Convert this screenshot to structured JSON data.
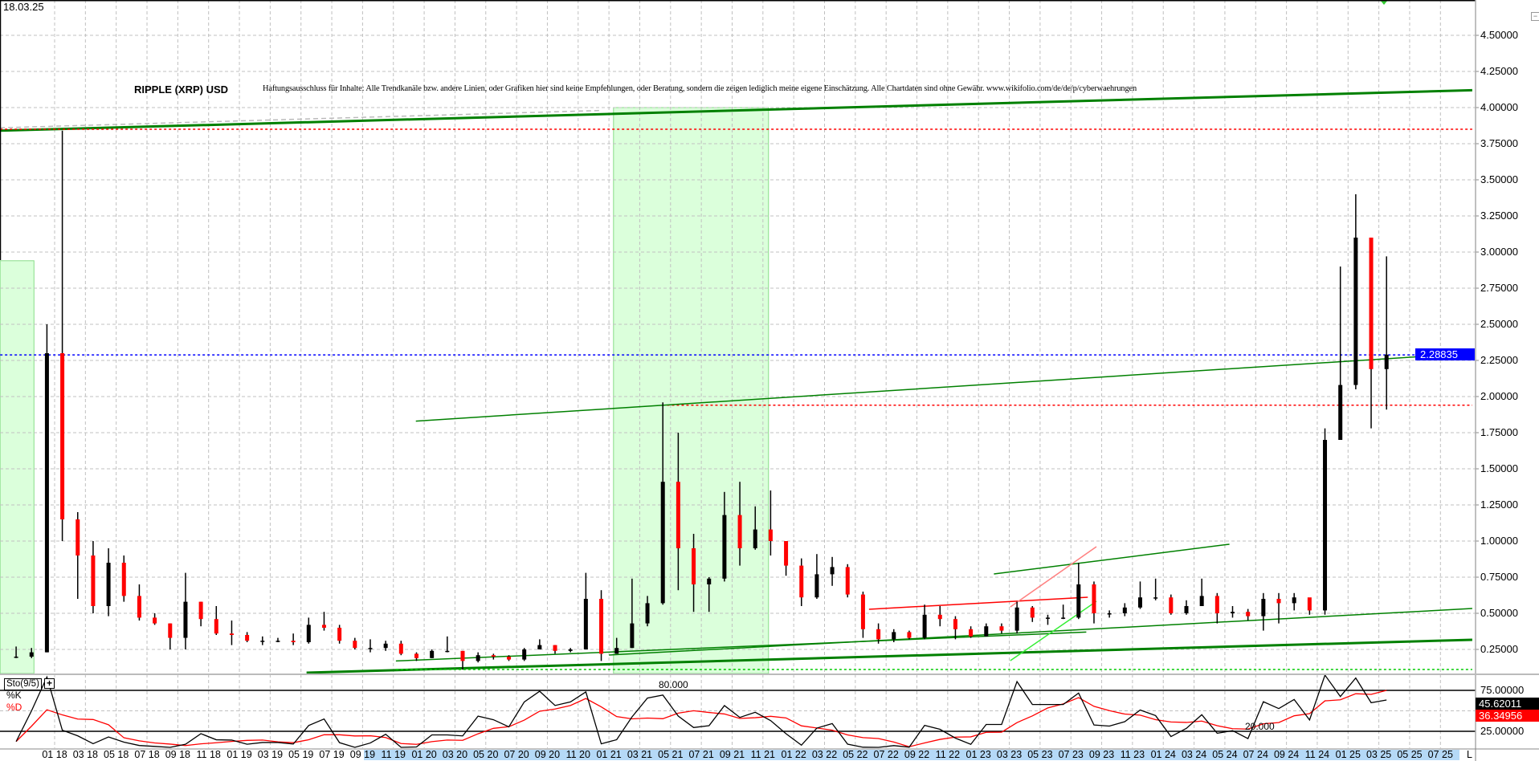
{
  "header": {
    "date": "18.03.25",
    "title": "RIPPLE (XRP) USD",
    "disclaimer": "Haftungsausschluss für Inhalte: Alle Trendkanäle bzw. andere Linien, oder Grafiken hier sind keine Empfehlungen, oder Beratung, sondern die zeigen lediglich meine eigene Einschätzung. Alle Chartdaten sind ohne Gewähr.  www.wikifolio.com/de/de/p/cyberwaehrungen"
  },
  "colors": {
    "up": "#000000",
    "down": "#ff0000",
    "trend_green": "#008000",
    "bright_green": "#33ee33",
    "pink": "#ff8080",
    "highlight_zone": "#ccffcc",
    "price_marker": "#0000ff",
    "axis_band": "#b5d9f7"
  },
  "chart_data": [
    {
      "type": "candlestick",
      "interval": "approx. monthly (high, low, close)",
      "y_axis": {
        "ticks": [
          "4.50000",
          "4.25000",
          "4.00000",
          "3.75000",
          "3.50000",
          "3.25000",
          "3.00000",
          "2.75000",
          "2.50000",
          "2.25000",
          "2.00000",
          "1.75000",
          "1.50000",
          "1.25000",
          "1.00000",
          "0.75000",
          "0.50000",
          "0.25000"
        ],
        "ylim": [
          0.08,
          4.74
        ],
        "position": "right",
        "grid": true
      },
      "x_axis": {
        "ticks": [
          "01 18",
          "03 18",
          "05 18",
          "07 18",
          "09 18",
          "11 18",
          "01 19",
          "03 19",
          "05 19",
          "07 19",
          "09 19",
          "11 19",
          "01 20",
          "03 20",
          "05 20",
          "07 20",
          "09 20",
          "11 20",
          "01 21",
          "03 21",
          "05 21",
          "07 21",
          "09 21",
          "11 21",
          "01 22",
          "03 22",
          "05 22",
          "07 22",
          "09 22",
          "11 22",
          "01 23",
          "03 23",
          "05 23",
          "07 23",
          "09 23",
          "11 23",
          "01 24",
          "03 24",
          "05 24",
          "07 24",
          "09 24",
          "11 24",
          "01 25",
          "03 25",
          "05 25",
          "07 25"
        ],
        "end_label": "L",
        "grid": true
      },
      "last_price": "2.28835",
      "bars": [
        [
          "2017-10",
          0.27,
          0.19,
          0.2
        ],
        [
          "2017-11",
          0.26,
          0.19,
          0.23
        ],
        [
          "2017-12",
          2.5,
          0.23,
          2.3
        ],
        [
          "2018-01",
          3.84,
          1.0,
          1.15
        ],
        [
          "2018-02",
          1.2,
          0.6,
          0.9
        ],
        [
          "2018-03",
          1.0,
          0.5,
          0.55
        ],
        [
          "2018-04",
          0.95,
          0.48,
          0.85
        ],
        [
          "2018-05",
          0.9,
          0.58,
          0.62
        ],
        [
          "2018-06",
          0.7,
          0.45,
          0.47
        ],
        [
          "2018-07",
          0.5,
          0.42,
          0.43
        ],
        [
          "2018-08",
          0.43,
          0.25,
          0.33
        ],
        [
          "2018-09",
          0.78,
          0.25,
          0.58
        ],
        [
          "2018-10",
          0.58,
          0.41,
          0.46
        ],
        [
          "2018-11",
          0.55,
          0.35,
          0.36
        ],
        [
          "2018-12",
          0.45,
          0.28,
          0.35
        ],
        [
          "2019-01",
          0.37,
          0.3,
          0.31
        ],
        [
          "2019-02",
          0.34,
          0.28,
          0.31
        ],
        [
          "2019-03",
          0.33,
          0.3,
          0.31
        ],
        [
          "2019-04",
          0.36,
          0.28,
          0.3
        ],
        [
          "2019-05",
          0.47,
          0.29,
          0.42
        ],
        [
          "2019-06",
          0.51,
          0.38,
          0.4
        ],
        [
          "2019-07",
          0.42,
          0.29,
          0.31
        ],
        [
          "2019-08",
          0.33,
          0.25,
          0.26
        ],
        [
          "2019-09",
          0.32,
          0.23,
          0.26
        ],
        [
          "2019-10",
          0.31,
          0.24,
          0.29
        ],
        [
          "2019-11",
          0.31,
          0.21,
          0.22
        ],
        [
          "2019-12",
          0.23,
          0.17,
          0.19
        ],
        [
          "2020-01",
          0.25,
          0.19,
          0.24
        ],
        [
          "2020-02",
          0.34,
          0.23,
          0.24
        ],
        [
          "2020-03",
          0.24,
          0.11,
          0.17
        ],
        [
          "2020-04",
          0.23,
          0.16,
          0.21
        ],
        [
          "2020-05",
          0.22,
          0.18,
          0.2
        ],
        [
          "2020-06",
          0.21,
          0.17,
          0.18
        ],
        [
          "2020-07",
          0.26,
          0.17,
          0.25
        ],
        [
          "2020-08",
          0.32,
          0.25,
          0.28
        ],
        [
          "2020-09",
          0.28,
          0.22,
          0.24
        ],
        [
          "2020-10",
          0.26,
          0.23,
          0.25
        ],
        [
          "2020-11",
          0.78,
          0.25,
          0.6
        ],
        [
          "2020-12",
          0.66,
          0.17,
          0.22
        ],
        [
          "2021-01",
          0.33,
          0.22,
          0.26
        ],
        [
          "2021-02",
          0.74,
          0.26,
          0.43
        ],
        [
          "2021-03",
          0.62,
          0.41,
          0.57
        ],
        [
          "2021-04",
          1.96,
          0.56,
          1.41
        ],
        [
          "2021-05",
          1.75,
          0.66,
          0.95
        ],
        [
          "2021-06",
          1.05,
          0.51,
          0.7
        ],
        [
          "2021-07",
          0.75,
          0.51,
          0.74
        ],
        [
          "2021-08",
          1.34,
          0.72,
          1.18
        ],
        [
          "2021-09",
          1.41,
          0.83,
          0.95
        ],
        [
          "2021-10",
          1.24,
          0.94,
          1.08
        ],
        [
          "2021-11",
          1.35,
          0.9,
          1.0
        ],
        [
          "2021-12",
          1.0,
          0.76,
          0.83
        ],
        [
          "2022-01",
          0.88,
          0.55,
          0.61
        ],
        [
          "2022-02",
          0.91,
          0.6,
          0.77
        ],
        [
          "2022-03",
          0.89,
          0.69,
          0.82
        ],
        [
          "2022-04",
          0.84,
          0.61,
          0.63
        ],
        [
          "2022-05",
          0.65,
          0.33,
          0.39
        ],
        [
          "2022-06",
          0.43,
          0.29,
          0.32
        ],
        [
          "2022-07",
          0.39,
          0.3,
          0.37
        ],
        [
          "2022-08",
          0.38,
          0.32,
          0.33
        ],
        [
          "2022-09",
          0.56,
          0.32,
          0.49
        ],
        [
          "2022-10",
          0.55,
          0.41,
          0.46
        ],
        [
          "2022-11",
          0.48,
          0.32,
          0.39
        ],
        [
          "2022-12",
          0.41,
          0.33,
          0.34
        ],
        [
          "2023-01",
          0.43,
          0.34,
          0.41
        ],
        [
          "2023-02",
          0.43,
          0.36,
          0.38
        ],
        [
          "2023-03",
          0.58,
          0.36,
          0.54
        ],
        [
          "2023-04",
          0.55,
          0.44,
          0.47
        ],
        [
          "2023-05",
          0.49,
          0.42,
          0.47
        ],
        [
          "2023-06",
          0.56,
          0.46,
          0.47
        ],
        [
          "2023-07",
          0.85,
          0.46,
          0.7
        ],
        [
          "2023-08",
          0.72,
          0.43,
          0.5
        ],
        [
          "2023-09",
          0.52,
          0.47,
          0.5
        ],
        [
          "2023-10",
          0.57,
          0.48,
          0.54
        ],
        [
          "2023-11",
          0.72,
          0.53,
          0.61
        ],
        [
          "2023-12",
          0.74,
          0.59,
          0.61
        ],
        [
          "2024-01",
          0.63,
          0.49,
          0.5
        ],
        [
          "2024-02",
          0.59,
          0.49,
          0.55
        ],
        [
          "2024-03",
          0.74,
          0.55,
          0.62
        ],
        [
          "2024-04",
          0.64,
          0.43,
          0.5
        ],
        [
          "2024-05",
          0.55,
          0.47,
          0.51
        ],
        [
          "2024-06",
          0.53,
          0.45,
          0.48
        ],
        [
          "2024-07",
          0.64,
          0.38,
          0.6
        ],
        [
          "2024-08",
          0.64,
          0.43,
          0.57
        ],
        [
          "2024-09",
          0.64,
          0.52,
          0.61
        ],
        [
          "2024-10",
          0.55,
          0.49,
          0.52
        ],
        [
          "2024-11",
          1.78,
          0.49,
          1.7
        ],
        [
          "2024-12",
          2.9,
          1.9,
          2.08
        ],
        [
          "2025-01",
          3.4,
          2.05,
          3.1
        ],
        [
          "2025-02",
          3.1,
          1.78,
          2.19
        ],
        [
          "2025-03",
          2.97,
          1.91,
          2.29
        ]
      ],
      "trendlines": [
        {
          "from": [
            "2017-09-15",
            3.84
          ],
          "to": [
            "2025-09-03",
            4.12
          ],
          "color": "#008000",
          "style": "thick"
        },
        {
          "from": [
            "2017-09-15",
            3.86
          ],
          "to": [
            "2020-12-15",
            3.98
          ],
          "color": "#bbbbbb",
          "style": "dashed"
        },
        {
          "from": [
            "2017-09-15",
            3.85
          ],
          "to": [
            "2025-09-03",
            3.85
          ],
          "color": "#ff0000",
          "style": "dotted"
        },
        {
          "from": [
            "2017-09-15",
            2.28835
          ],
          "to": [
            "2025-09-03",
            2.28835
          ],
          "color": "#0000ff",
          "style": "dotted"
        },
        {
          "from": [
            "2021-04-15",
            1.94
          ],
          "to": [
            "2025-09-03",
            1.94
          ],
          "color": "#ff0000",
          "style": "dotted"
        },
        {
          "from": [
            "2019-12-15",
            1.83
          ],
          "to": [
            "2025-09-03",
            2.3
          ],
          "color": "#008000",
          "style": "thin"
        },
        {
          "from": [
            "2019-05-12",
            0.089
          ],
          "to": [
            "2025-09-03",
            0.317
          ],
          "color": "#008000",
          "style": "thick"
        },
        {
          "from": [
            "2021-01-01",
            0.211
          ],
          "to": [
            "2025-09-03",
            0.533
          ],
          "color": "#008000",
          "style": "thin"
        },
        {
          "from": [
            "2019-11-06",
            0.17
          ],
          "to": [
            "2023-08-01",
            0.37
          ],
          "color": "#008000",
          "style": "thin"
        },
        {
          "from": [
            "2023-02-01",
            0.772
          ],
          "to": [
            "2024-05-10",
            0.978
          ],
          "color": "#008000",
          "style": "thin"
        },
        {
          "from": [
            "2022-05-28",
            0.528
          ],
          "to": [
            "2023-08-04",
            0.611
          ],
          "color": "#ff0000",
          "style": "thin"
        },
        {
          "from": [
            "2023-03-03",
            0.544
          ],
          "to": [
            "2023-08-21",
            0.961
          ],
          "color": "#ff8080",
          "style": "thin"
        },
        {
          "from": [
            "2023-03-03",
            0.172
          ],
          "to": [
            "2023-08-21",
            0.583
          ],
          "color": "#33ee33",
          "style": "thin"
        },
        {
          "from": [
            "2019-11-06",
            0.111
          ],
          "to": [
            "2025-09-03",
            0.111
          ],
          "color": "#00cc00",
          "style": "dotted"
        }
      ],
      "zones": [
        {
          "from": "2017-09-15",
          "to": "2017-11-21",
          "top": 2.94
        },
        {
          "from": "2021-01-10",
          "to": "2021-11-12",
          "top": 4.0
        }
      ]
    },
    {
      "type": "line",
      "name": "Sto(9/5)",
      "series_names": [
        "%K",
        "%D"
      ],
      "levels": [
        "80.000",
        "20.000"
      ],
      "y_ticks": [
        "75.00000",
        "25.00000"
      ],
      "last_k": "45.62011",
      "last_d": "36.34956",
      "plus_label": "+"
    }
  ]
}
